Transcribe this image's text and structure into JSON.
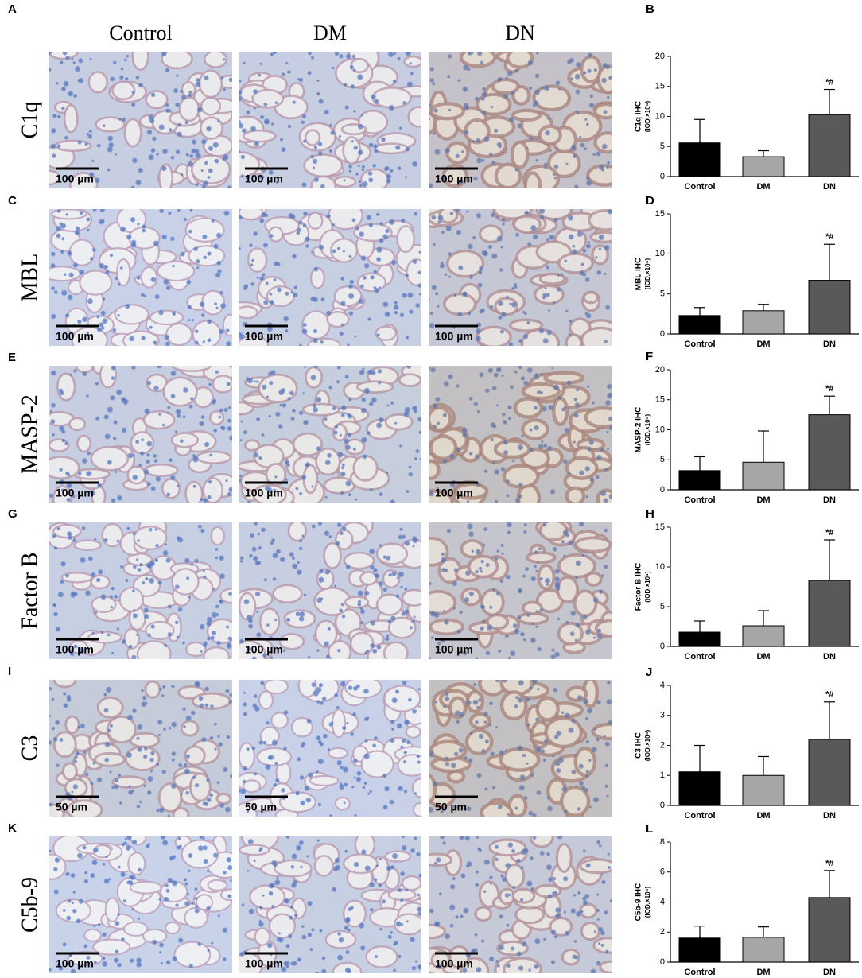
{
  "micrographs": {
    "panel_labels": [
      "A",
      "C",
      "E",
      "G",
      "I",
      "K"
    ],
    "columns": [
      "Control",
      "DM",
      "DN"
    ],
    "rows": [
      "C1q",
      "MBL",
      "MASP-2",
      "Factor B",
      "C3",
      "C5b-9"
    ],
    "scale_bars": [
      "100 µm",
      "100 µm",
      "100 µm",
      "100 µm",
      "50 µm",
      "100 µm"
    ]
  },
  "chart_data": [
    {
      "type": "bar",
      "panel_label": "B",
      "ylabel": "C1q IHC",
      "ylabel_units": "(IOD,×10⁴)",
      "categories": [
        "Control",
        "DM",
        "DN"
      ],
      "values": [
        5.6,
        3.3,
        10.3
      ],
      "errors": [
        3.9,
        1.0,
        4.2
      ],
      "colors": [
        "#000000",
        "#a6a6a6",
        "#595959"
      ],
      "ylim": [
        0,
        20
      ],
      "yticks": [
        0,
        5,
        10,
        15,
        20
      ],
      "annotation": "*#"
    },
    {
      "type": "bar",
      "panel_label": "D",
      "ylabel": "MBL IHC",
      "ylabel_units": "(IOD,×10⁴)",
      "categories": [
        "Control",
        "DM",
        "DN"
      ],
      "values": [
        2.3,
        2.9,
        6.7
      ],
      "errors": [
        1.0,
        0.8,
        4.5
      ],
      "colors": [
        "#000000",
        "#a6a6a6",
        "#595959"
      ],
      "ylim": [
        0,
        15
      ],
      "yticks": [
        0,
        5,
        10,
        15
      ],
      "annotation": "*#"
    },
    {
      "type": "bar",
      "panel_label": "F",
      "ylabel": "MASP-2 IHC",
      "ylabel_units": "(IOD,×10⁴)",
      "categories": [
        "Control",
        "DM",
        "DN"
      ],
      "values": [
        3.2,
        4.6,
        12.5
      ],
      "errors": [
        2.3,
        5.2,
        3.1
      ],
      "colors": [
        "#000000",
        "#a6a6a6",
        "#595959"
      ],
      "ylim": [
        0,
        20
      ],
      "yticks": [
        0,
        5,
        10,
        15,
        20
      ],
      "annotation": "*#"
    },
    {
      "type": "bar",
      "panel_label": "H",
      "ylabel": "Factor B IHC",
      "ylabel_units": "(IOD,×10⁴)",
      "categories": [
        "Control",
        "DM",
        "DN"
      ],
      "values": [
        1.8,
        2.6,
        8.3
      ],
      "errors": [
        1.4,
        1.9,
        5.1
      ],
      "colors": [
        "#000000",
        "#a6a6a6",
        "#595959"
      ],
      "ylim": [
        0,
        15
      ],
      "yticks": [
        0,
        5,
        10,
        15
      ],
      "annotation": "*#"
    },
    {
      "type": "bar",
      "panel_label": "J",
      "ylabel": "C3 IHC",
      "ylabel_units": "(IOD,×10⁴)",
      "categories": [
        "Control",
        "DM",
        "DN"
      ],
      "values": [
        1.12,
        1.0,
        2.2
      ],
      "errors": [
        0.88,
        0.63,
        1.25
      ],
      "colors": [
        "#000000",
        "#a6a6a6",
        "#595959"
      ],
      "ylim": [
        0,
        4
      ],
      "yticks": [
        0,
        1,
        2,
        3,
        4
      ],
      "annotation": "*#"
    },
    {
      "type": "bar",
      "panel_label": "L",
      "ylabel": "C5b-9 IHC",
      "ylabel_units": "(IOD,×10⁴)",
      "categories": [
        "Control",
        "DM",
        "DN"
      ],
      "values": [
        1.6,
        1.65,
        4.3
      ],
      "errors": [
        0.8,
        0.7,
        1.8
      ],
      "colors": [
        "#000000",
        "#a6a6a6",
        "#595959"
      ],
      "ylim": [
        0,
        8
      ],
      "yticks": [
        0,
        2,
        4,
        6,
        8
      ],
      "annotation": "*#"
    }
  ]
}
